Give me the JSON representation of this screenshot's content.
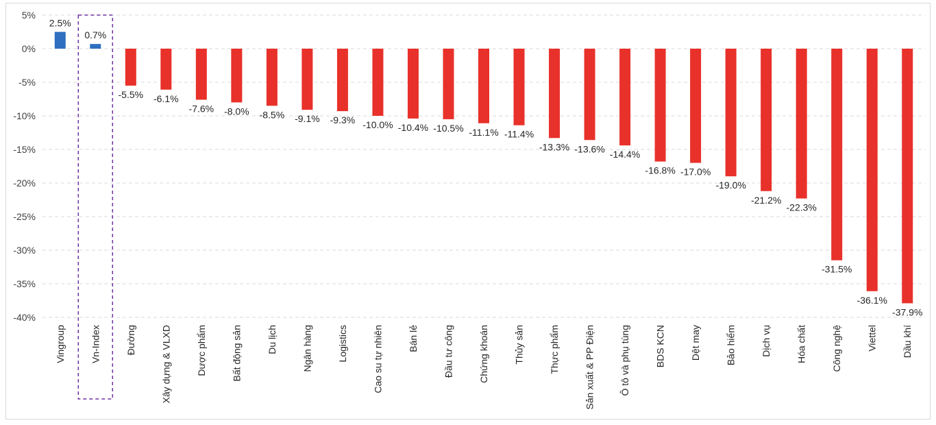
{
  "chart_data": {
    "type": "bar",
    "title": "",
    "xlabel": "",
    "ylabel": "",
    "ylim": [
      -40,
      5
    ],
    "ytick_step": 5,
    "y_tick_labels": [
      "5%",
      "0%",
      "-5%",
      "-10%",
      "-15%",
      "-20%",
      "-25%",
      "-30%",
      "-35%",
      "-40%"
    ],
    "grid": "horizontal dashed",
    "highlighted_category": "Vn-Index",
    "colors": {
      "positive": "#2E6FC0",
      "negative": "#E8312A",
      "highlight_box": "#7030A0",
      "grid": "#d9d9d9"
    },
    "categories": [
      "Vingroup",
      "Vn-Index",
      "Đường",
      "Xây dựng & VLXD",
      "Dược phẩm",
      "Bất động sản",
      "Du lịch",
      "Ngân hàng",
      "Logistics",
      "Cao su tự nhiên",
      "Bán lẻ",
      "Đầu tư công",
      "Chứng khoán",
      "Thủy sản",
      "Thực phẩm",
      "Sản xuất & PP Điện",
      "Ô tô và phụ tùng",
      "BDS KCN",
      "Dệt may",
      "Bảo hiểm",
      "Dịch vụ",
      "Hóa chất",
      "Công nghệ",
      "Viettel",
      "Dầu khí"
    ],
    "values": [
      2.5,
      0.7,
      -5.5,
      -6.1,
      -7.6,
      -8.0,
      -8.5,
      -9.1,
      -9.3,
      -10.0,
      -10.4,
      -10.5,
      -11.1,
      -11.4,
      -13.3,
      -13.6,
      -14.4,
      -16.8,
      -17.0,
      -19.0,
      -21.2,
      -22.3,
      -31.5,
      -36.1,
      -37.9
    ],
    "value_labels": [
      "2.5%",
      "0.7%",
      "-5.5%",
      "-6.1%",
      "-7.6%",
      "-8.0%",
      "-8.5%",
      "-9.1%",
      "-9.3%",
      "-10.0%",
      "-10.4%",
      "-10.5%",
      "-11.1%",
      "-11.4%",
      "-13.3%",
      "-13.6%",
      "-14.4%",
      "-16.8%",
      "-17.0%",
      "-19.0%",
      "-21.2%",
      "-22.3%",
      "-31.5%",
      "-36.1%",
      "-37.9%"
    ]
  }
}
